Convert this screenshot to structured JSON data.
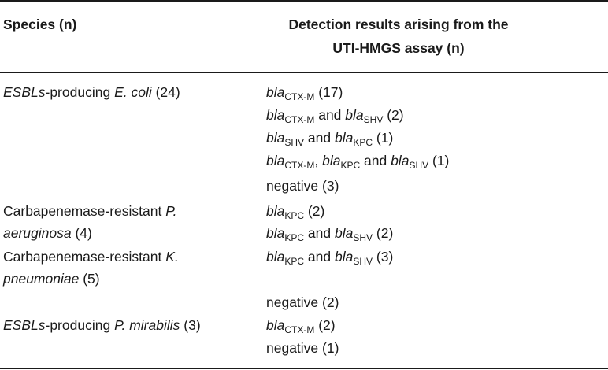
{
  "header": {
    "species": "Species (n)",
    "detection": "Detection results arising from the UTI-HMGS assay (n)"
  },
  "species": [
    {
      "prefix": "",
      "italic": "ESBLs",
      "mid": "-producing ",
      "italic2": "E. coli",
      "suffix": " (24)"
    },
    {
      "line1_plain": "Carbapenemase-resistant ",
      "line1_italic": "P.",
      "line2_italic": "aeruginosa",
      "line2_plain": " (4)"
    },
    {
      "line1_plain": "Carbapenemase-resistant ",
      "line1_italic": "K.",
      "line2_italic": "pneumoniae",
      "line2_plain": " (5)"
    },
    {
      "italic": "ESBLs",
      "mid": "-producing ",
      "italic2": "P. mirabilis",
      "suffix": " (3)"
    }
  ],
  "gene": {
    "bla": "bla",
    "ctxm": "CTX-M",
    "shv": "SHV",
    "kpc": "KPC",
    "and": " and ",
    "comma": ", ",
    "negative": "negative"
  },
  "results": {
    "r1_count": " (17)",
    "r2_count": " (2)",
    "r3_count": " (1)",
    "r4_count": " (1)",
    "r5": "negative (3)",
    "r6_count": " (2)",
    "r7_count": " (2)",
    "r8_count": " (3)",
    "r9": "negative (2)",
    "r10_count": " (2)",
    "r11": "negative (1)"
  }
}
